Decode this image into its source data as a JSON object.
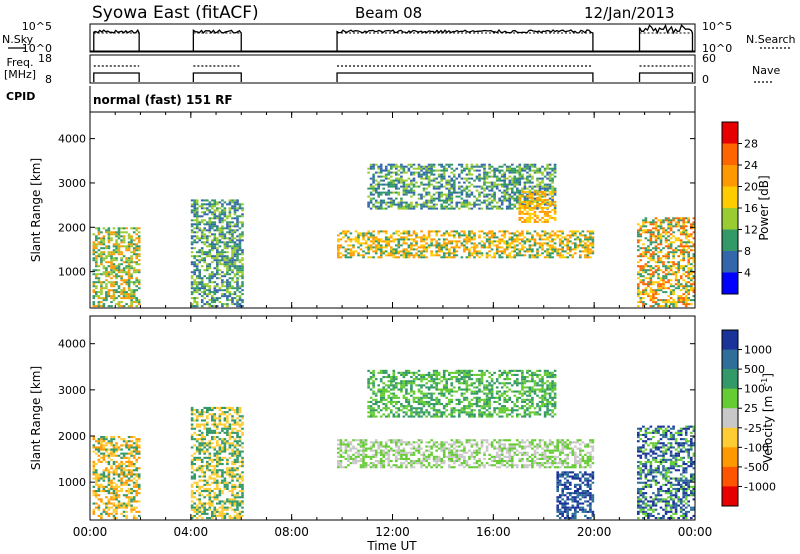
{
  "header": {
    "title": "Syowa East (fitACF)",
    "beam": "Beam 08",
    "date": "12/Jan/2013"
  },
  "strips": {
    "nsky_label": "N.Sky",
    "nsky_ticks": [
      "10^5",
      "10^0"
    ],
    "nsearch_label": "N.Search",
    "nsearch_ticks": [
      "10^5",
      "10^0"
    ],
    "freq_label_top": "Freq.",
    "freq_label_bottom": "[MHz]",
    "freq_ticks": [
      "18",
      "8"
    ],
    "nave_label": "Nave",
    "nave_ticks": [
      "60",
      "0"
    ],
    "cpid_label": "CPID",
    "cpid_text": "normal (fast) 151 RF"
  },
  "colorbars": {
    "power": {
      "label": "Power [dB]",
      "ticks": [
        "28",
        "24",
        "20",
        "16",
        "12",
        "8",
        "4"
      ],
      "colors": [
        "#e60000",
        "#ff6600",
        "#ff9900",
        "#ffcc00",
        "#99cc33",
        "#339966",
        "#3366aa",
        "#0000ff"
      ]
    },
    "velocity": {
      "label": "Velocity [m s",
      "label_sup": "-1",
      "label_end": "]",
      "ticks": [
        "1000",
        "500",
        "100",
        "25",
        "-25",
        "-100",
        "-500",
        "-1000"
      ],
      "colors": [
        "#1a3399",
        "#2e6e99",
        "#339966",
        "#66cc33",
        "#c8c8c8",
        "#ffcc33",
        "#ff9900",
        "#ff5500",
        "#e60000"
      ]
    }
  },
  "chart_data": [
    {
      "type": "heatmap",
      "name": "Power",
      "ylabel": "Slant Range [km]",
      "xlabel": "Time UT",
      "xlim": [
        0,
        24
      ],
      "ylim": [
        180,
        4600
      ],
      "xticks": [
        "00:00",
        "04:00",
        "08:00",
        "12:00",
        "16:00",
        "20:00",
        "00:00"
      ],
      "yticks": [
        1000,
        2000,
        3000,
        4000
      ],
      "regions": [
        {
          "t": [
            0.1,
            2.0
          ],
          "r": [
            200,
            2000
          ],
          "levels": [
            22,
            14,
            8
          ]
        },
        {
          "t": [
            4.0,
            6.0
          ],
          "r": [
            200,
            2600
          ],
          "levels": [
            4,
            8,
            12
          ]
        },
        {
          "t": [
            9.8,
            20.0
          ],
          "r": [
            1300,
            1900
          ],
          "levels": [
            20,
            16,
            8
          ]
        },
        {
          "t": [
            11.0,
            18.5
          ],
          "r": [
            2400,
            3400
          ],
          "levels": [
            4,
            8,
            12
          ]
        },
        {
          "t": [
            17.0,
            18.5
          ],
          "r": [
            2100,
            2800
          ],
          "levels": [
            16,
            20
          ]
        },
        {
          "t": [
            21.7,
            24.0
          ],
          "r": [
            200,
            2200
          ],
          "levels": [
            24,
            16,
            8
          ]
        }
      ]
    },
    {
      "type": "heatmap",
      "name": "Velocity",
      "ylabel": "Slant Range [km]",
      "xlabel": "Time UT",
      "xlim": [
        0,
        24
      ],
      "ylim": [
        180,
        4600
      ],
      "xticks": [
        "00:00",
        "04:00",
        "08:00",
        "12:00",
        "16:00",
        "20:00",
        "00:00"
      ],
      "yticks": [
        1000,
        2000,
        3000,
        4000
      ],
      "regions": [
        {
          "t": [
            0.1,
            2.0
          ],
          "r": [
            200,
            2000
          ],
          "levels": [
            -100,
            -500,
            100
          ]
        },
        {
          "t": [
            4.0,
            6.0
          ],
          "r": [
            200,
            2600
          ],
          "levels": [
            -100,
            100
          ]
        },
        {
          "t": [
            9.8,
            20.0
          ],
          "r": [
            1300,
            1900
          ],
          "levels": [
            25,
            -25
          ]
        },
        {
          "t": [
            11.0,
            18.5
          ],
          "r": [
            2400,
            3400
          ],
          "levels": [
            100,
            25
          ]
        },
        {
          "t": [
            18.5,
            20.0
          ],
          "r": [
            200,
            1200
          ],
          "levels": [
            500,
            1000
          ]
        },
        {
          "t": [
            21.7,
            24.0
          ],
          "r": [
            200,
            2200
          ],
          "levels": [
            25,
            500,
            1000
          ]
        }
      ]
    }
  ],
  "operating_periods_ut": [
    [
      0.15,
      1.95
    ],
    [
      4.1,
      6.0
    ],
    [
      9.8,
      19.95
    ],
    [
      21.8,
      23.9
    ]
  ]
}
